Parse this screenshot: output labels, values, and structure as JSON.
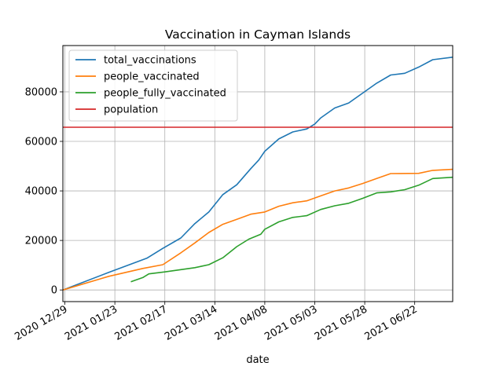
{
  "chart_data": {
    "type": "line",
    "title": "Vaccination in Cayman Islands",
    "xlabel": "date",
    "ylabel": "",
    "x_tick_labels": [
      "2020 12/29",
      "2021 01/23",
      "2021 02/17",
      "2021 03/14",
      "2021 04/08",
      "2021 05/03",
      "2021 05/28",
      "2021 06/22"
    ],
    "y_tick_labels": [
      "0",
      "20000",
      "40000",
      "60000",
      "80000"
    ],
    "x_ticks": [
      "2020-12-29",
      "2021-01-23",
      "2021-02-17",
      "2021-03-14",
      "2021-04-08",
      "2021-05-03",
      "2021-05-28",
      "2021-06-22"
    ],
    "y_ticks": [
      0,
      20000,
      40000,
      60000,
      80000
    ],
    "xlim": [
      "2020-12-28",
      "2021-07-11"
    ],
    "ylim": [
      -4700,
      98700
    ],
    "grid": true,
    "legend_position": "top-left",
    "series": [
      {
        "name": "total_vaccinations",
        "color": "#1f77b4",
        "points": [
          [
            "2020-12-28",
            0
          ],
          [
            "2021-01-20",
            7100
          ],
          [
            "2021-02-08",
            12800
          ],
          [
            "2021-02-16",
            16800
          ],
          [
            "2021-02-25",
            21000
          ],
          [
            "2021-03-04",
            26800
          ],
          [
            "2021-03-11",
            31500
          ],
          [
            "2021-03-18",
            38500
          ],
          [
            "2021-03-25",
            42500
          ],
          [
            "2021-04-01",
            49000
          ],
          [
            "2021-04-05",
            52500
          ],
          [
            "2021-04-08",
            56000
          ],
          [
            "2021-04-15",
            61000
          ],
          [
            "2021-04-22",
            63800
          ],
          [
            "2021-04-29",
            65000
          ],
          [
            "2021-05-03",
            67000
          ],
          [
            "2021-05-06",
            69500
          ],
          [
            "2021-05-13",
            73500
          ],
          [
            "2021-05-20",
            75500
          ],
          [
            "2021-05-27",
            79500
          ],
          [
            "2021-06-03",
            83500
          ],
          [
            "2021-06-10",
            86800
          ],
          [
            "2021-06-17",
            87500
          ],
          [
            "2021-06-24",
            90000
          ],
          [
            "2021-07-01",
            93000
          ],
          [
            "2021-07-11",
            94000
          ]
        ]
      },
      {
        "name": "people_vaccinated",
        "color": "#ff7f0e",
        "points": [
          [
            "2020-12-28",
            0
          ],
          [
            "2021-01-20",
            5500
          ],
          [
            "2021-02-06",
            8700
          ],
          [
            "2021-02-16",
            10200
          ],
          [
            "2021-02-25",
            15000
          ],
          [
            "2021-03-04",
            19000
          ],
          [
            "2021-03-11",
            23200
          ],
          [
            "2021-03-18",
            26500
          ],
          [
            "2021-03-25",
            28500
          ],
          [
            "2021-04-01",
            30600
          ],
          [
            "2021-04-08",
            31500
          ],
          [
            "2021-04-15",
            33800
          ],
          [
            "2021-04-22",
            35200
          ],
          [
            "2021-04-29",
            36000
          ],
          [
            "2021-05-06",
            38000
          ],
          [
            "2021-05-13",
            40000
          ],
          [
            "2021-05-20",
            41200
          ],
          [
            "2021-05-27",
            43000
          ],
          [
            "2021-06-03",
            45000
          ],
          [
            "2021-06-10",
            47000
          ],
          [
            "2021-06-24",
            47100
          ],
          [
            "2021-07-01",
            48300
          ],
          [
            "2021-07-11",
            48700
          ]
        ]
      },
      {
        "name": "people_fully_vaccinated",
        "color": "#2ca02c",
        "points": [
          [
            "2021-01-31",
            3300
          ],
          [
            "2021-02-06",
            5000
          ],
          [
            "2021-02-09",
            6500
          ],
          [
            "2021-02-17",
            7300
          ],
          [
            "2021-02-25",
            8200
          ],
          [
            "2021-03-04",
            9000
          ],
          [
            "2021-03-11",
            10200
          ],
          [
            "2021-03-18",
            13000
          ],
          [
            "2021-03-25",
            17500
          ],
          [
            "2021-03-31",
            20500
          ],
          [
            "2021-04-06",
            22500
          ],
          [
            "2021-04-08",
            24500
          ],
          [
            "2021-04-15",
            27500
          ],
          [
            "2021-04-22",
            29300
          ],
          [
            "2021-04-29",
            30000
          ],
          [
            "2021-05-06",
            32500
          ],
          [
            "2021-05-13",
            34000
          ],
          [
            "2021-05-20",
            35000
          ],
          [
            "2021-05-27",
            37000
          ],
          [
            "2021-06-03",
            39200
          ],
          [
            "2021-06-10",
            39600
          ],
          [
            "2021-06-17",
            40500
          ],
          [
            "2021-06-24",
            42300
          ],
          [
            "2021-07-01",
            45000
          ],
          [
            "2021-07-11",
            45500
          ]
        ]
      },
      {
        "name": "population",
        "color": "#d62728",
        "points": [
          [
            "2020-12-28",
            65722
          ],
          [
            "2021-07-11",
            65722
          ]
        ]
      }
    ]
  }
}
